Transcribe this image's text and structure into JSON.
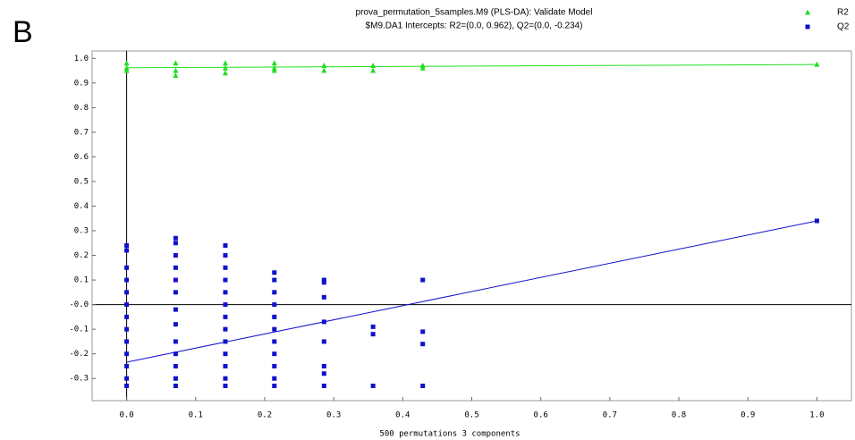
{
  "panel_label": "B",
  "chart_data": {
    "type": "scatter",
    "title": "prova_permutation_5samples.M9 (PLS-DA): Validate Model",
    "subtitle": "$M9.DA1 Intercepts: R2=(0.0, 0.962), Q2=(0.0, -0.234)",
    "x_label": "500 permutations 3 components",
    "xlim": [
      -0.05,
      1.05
    ],
    "ylim": [
      -0.39,
      1.03
    ],
    "xticks": [
      {
        "value": 0,
        "label": "0.0"
      },
      0.1,
      0.2,
      0.3,
      0.4,
      0.5,
      0.6,
      0.7,
      0.8,
      0.9,
      {
        "value": 1,
        "label": "1.0"
      }
    ],
    "yticks": [
      {
        "value": -0.3,
        "label": "-0.3"
      },
      {
        "value": -0.2,
        "label": "-0.2"
      },
      {
        "value": -0.1,
        "label": "-0.1"
      },
      {
        "value": 0,
        "label": "-0.0"
      },
      0.1,
      0.2,
      0.3,
      0.4,
      0.5,
      0.6,
      0.7,
      0.8,
      0.9,
      {
        "value": 1,
        "label": "1.0"
      }
    ],
    "grid": false,
    "legend": "top-right",
    "series": [
      {
        "name": "R2",
        "color": "#22dd22",
        "marker": "triangle",
        "x": [
          0,
          0,
          0,
          0.071,
          0.071,
          0.071,
          0.143,
          0.143,
          0.143,
          0.214,
          0.214,
          0.214,
          0.286,
          0.286,
          0.357,
          0.357,
          0.429,
          0.429,
          1
        ],
        "values": [
          0.98,
          0.96,
          0.95,
          0.98,
          0.95,
          0.93,
          0.98,
          0.96,
          0.94,
          0.98,
          0.96,
          0.95,
          0.97,
          0.95,
          0.97,
          0.95,
          0.97,
          0.96,
          0.975
        ],
        "fit": {
          "x": [
            0,
            1
          ],
          "values": [
            0.962,
            0.975
          ]
        }
      },
      {
        "name": "Q2",
        "color": "#1111cc",
        "marker": "square",
        "x": [
          0,
          0,
          0,
          0,
          0,
          0,
          0,
          0,
          0,
          0,
          0,
          0,
          0,
          0.071,
          0.071,
          0.071,
          0.071,
          0.071,
          0.071,
          0.071,
          0.071,
          0.071,
          0.071,
          0.071,
          0.071,
          0.071,
          0.143,
          0.143,
          0.143,
          0.143,
          0.143,
          0.143,
          0.143,
          0.143,
          0.143,
          0.143,
          0.143,
          0.143,
          0.143,
          0.214,
          0.214,
          0.214,
          0.214,
          0.214,
          0.214,
          0.214,
          0.214,
          0.214,
          0.214,
          0.214,
          0.286,
          0.286,
          0.286,
          0.286,
          0.286,
          0.286,
          0.286,
          0.286,
          0.357,
          0.357,
          0.357,
          0.429,
          0.429,
          0.429,
          0.429,
          1
        ],
        "values": [
          0.24,
          0.22,
          0.15,
          0.1,
          0.05,
          0,
          -0.05,
          -0.1,
          -0.15,
          -0.2,
          -0.25,
          -0.3,
          -0.33,
          0.27,
          0.25,
          0.2,
          0.15,
          0.1,
          0.05,
          -0.02,
          -0.08,
          -0.15,
          -0.2,
          -0.25,
          -0.3,
          -0.33,
          0.24,
          0.2,
          0.15,
          0.1,
          0.05,
          0,
          -0.05,
          -0.1,
          -0.15,
          -0.2,
          -0.25,
          -0.3,
          -0.33,
          0.13,
          0.1,
          0.05,
          0,
          -0.05,
          -0.1,
          -0.15,
          -0.2,
          -0.25,
          -0.3,
          -0.33,
          0.1,
          0.09,
          0.03,
          -0.07,
          -0.15,
          -0.25,
          -0.28,
          -0.33,
          -0.09,
          -0.12,
          -0.33,
          0.1,
          -0.11,
          -0.16,
          -0.33,
          0.34
        ],
        "fit": {
          "x": [
            0,
            1
          ],
          "values": [
            -0.234,
            0.34
          ]
        }
      }
    ]
  }
}
